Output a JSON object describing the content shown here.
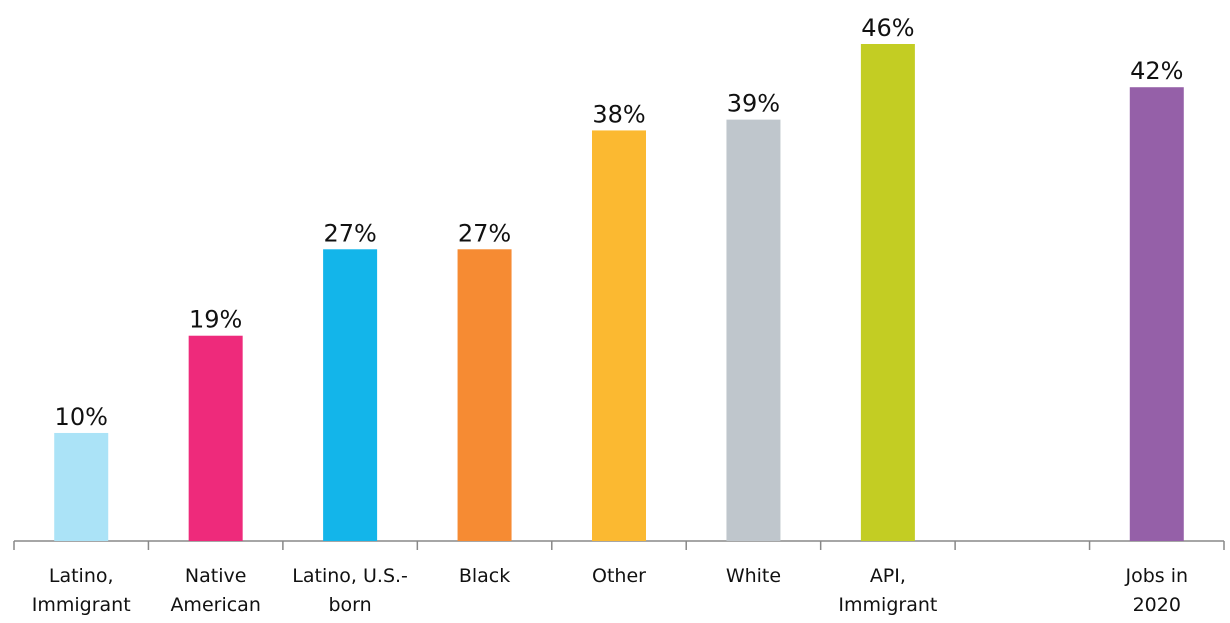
{
  "chart_data": {
    "type": "bar",
    "categories": [
      "Latino,\nImmigrant",
      "Native\nAmerican",
      "Latino, U.S.-\nborn",
      "Black",
      "Other",
      "White",
      "API,\nImmigrant",
      null,
      "Jobs in\n2020"
    ],
    "values": [
      10,
      19,
      27,
      27,
      38,
      39,
      46,
      null,
      42
    ],
    "value_labels": [
      "10%",
      "19%",
      "27%",
      "27%",
      "38%",
      "39%",
      "46%",
      null,
      "42%"
    ],
    "colors": [
      "#abe3f7",
      "#ee2a7b",
      "#13b5ea",
      "#f68b33",
      "#fbb931",
      "#bfc6cc",
      "#c3cd23",
      null,
      "#9560a8"
    ]
  }
}
